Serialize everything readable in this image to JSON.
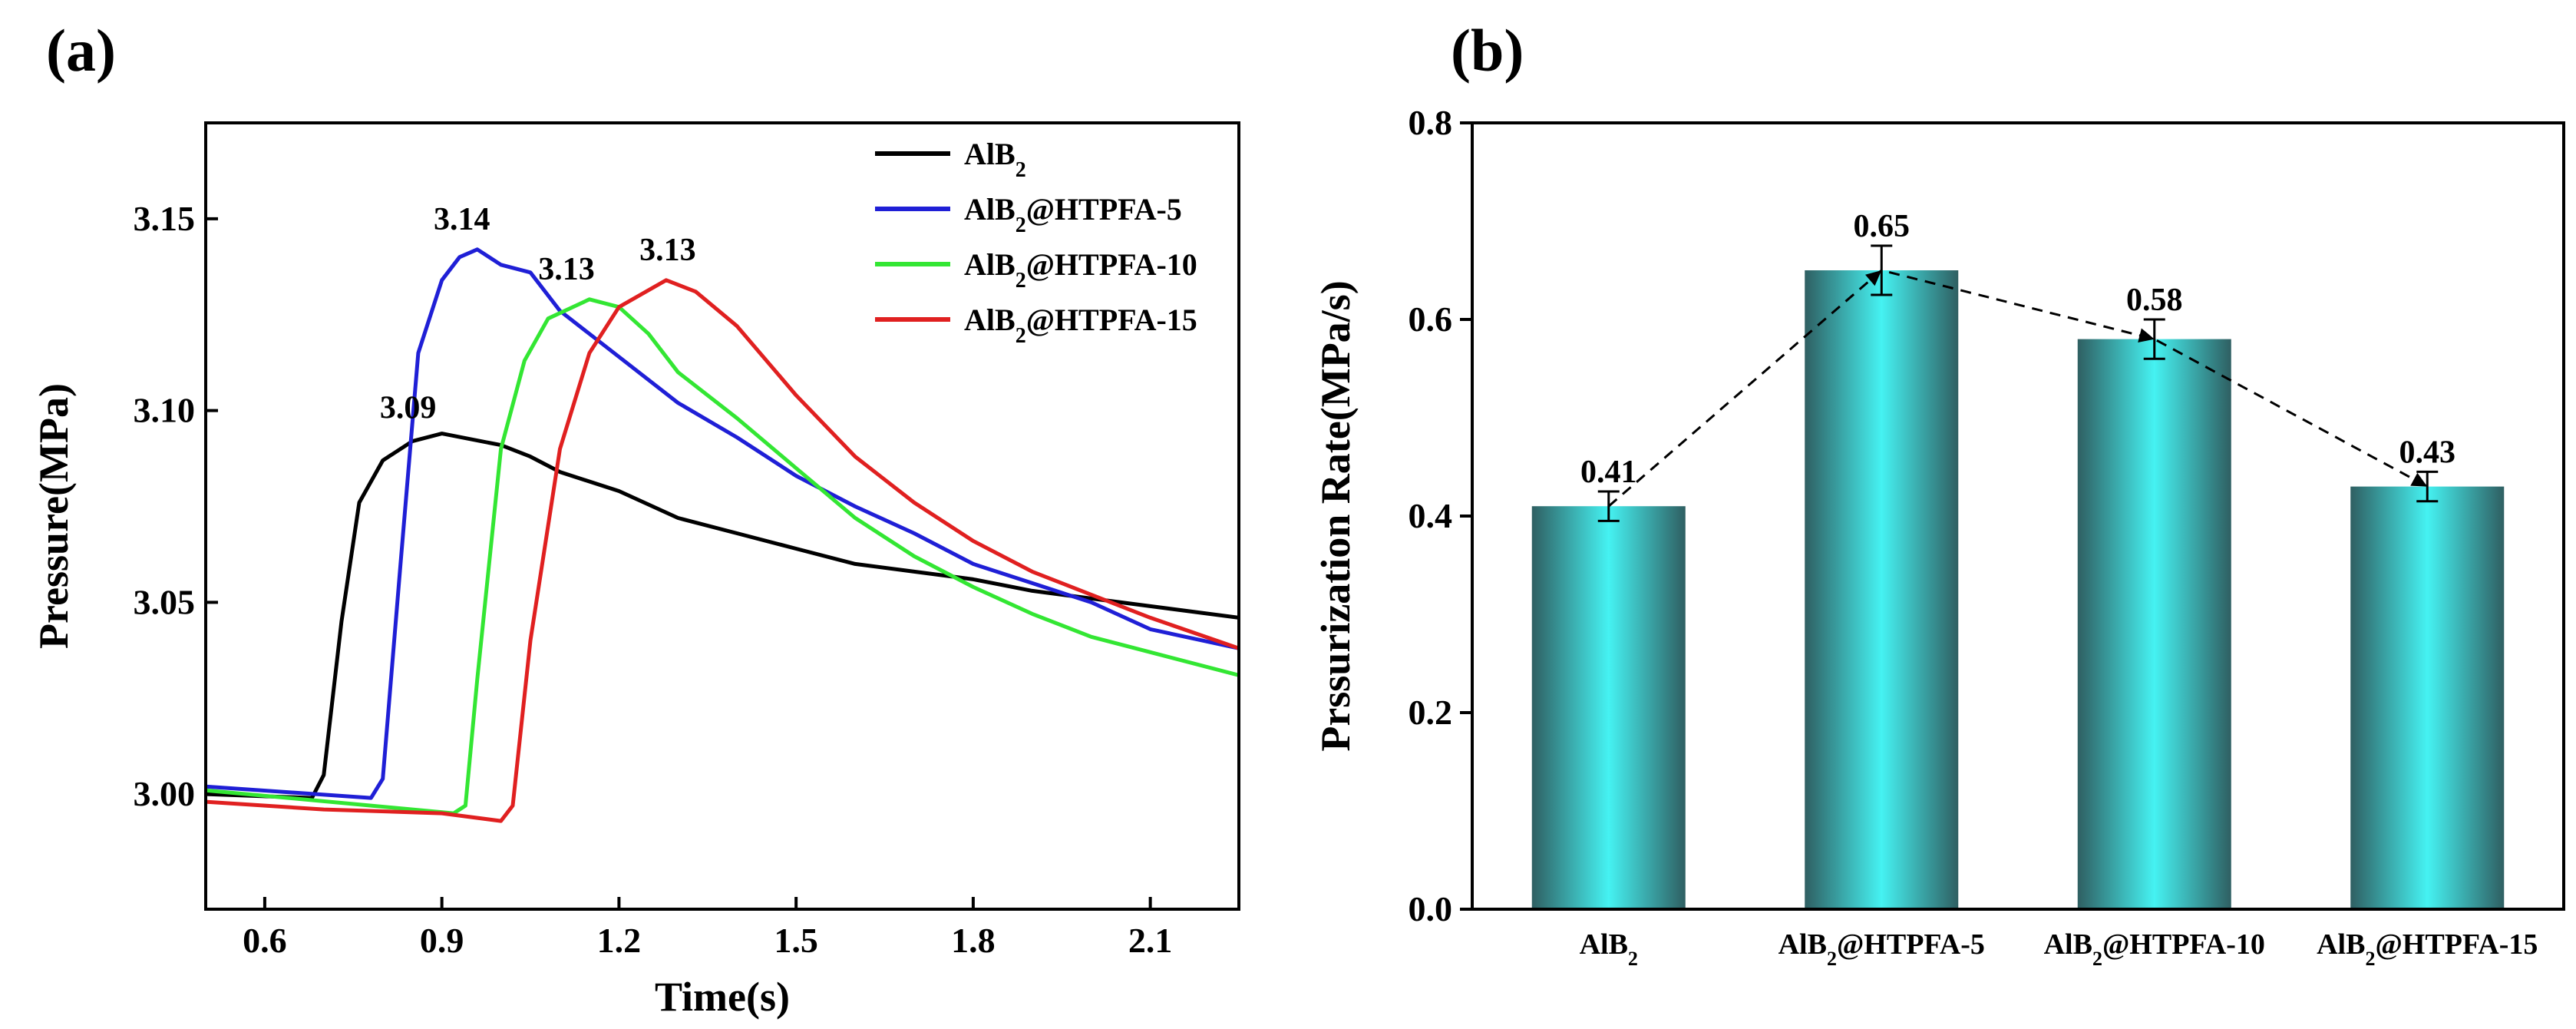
{
  "chart_data": [
    {
      "panel": "(a)",
      "type": "line",
      "xlabel": "Time(s)",
      "ylabel": "Pressure(MPa)",
      "xlim": [
        0.5,
        2.25
      ],
      "ylim": [
        2.97,
        3.175
      ],
      "xticks": [
        "0.6",
        "0.9",
        "1.2",
        "1.5",
        "1.8",
        "2.1"
      ],
      "yticks": [
        "3.00",
        "3.05",
        "3.10",
        "3.15"
      ],
      "legend_position": "top-right",
      "series": [
        {
          "name": "AlB",
          "sub": "2",
          "suffix": "",
          "color": "#000000",
          "peak_label": "3.09",
          "peak": [
            0.9,
            3.094
          ],
          "points": [
            [
              0.5,
              3.0
            ],
            [
              0.68,
              2.999
            ],
            [
              0.7,
              3.005
            ],
            [
              0.73,
              3.045
            ],
            [
              0.76,
              3.076
            ],
            [
              0.8,
              3.087
            ],
            [
              0.85,
              3.092
            ],
            [
              0.9,
              3.094
            ],
            [
              1.0,
              3.091
            ],
            [
              1.05,
              3.088
            ],
            [
              1.1,
              3.084
            ],
            [
              1.2,
              3.079
            ],
            [
              1.3,
              3.072
            ],
            [
              1.4,
              3.068
            ],
            [
              1.5,
              3.064
            ],
            [
              1.6,
              3.06
            ],
            [
              1.7,
              3.058
            ],
            [
              1.8,
              3.056
            ],
            [
              1.9,
              3.053
            ],
            [
              2.0,
              3.051
            ],
            [
              2.1,
              3.049
            ],
            [
              2.25,
              3.046
            ]
          ]
        },
        {
          "name": "AlB",
          "sub": "2",
          "suffix": "@HTPFA-5",
          "color": "#1f1fd6",
          "peak_label": "3.14",
          "peak": [
            0.96,
            3.142
          ],
          "points": [
            [
              0.5,
              3.002
            ],
            [
              0.78,
              2.999
            ],
            [
              0.8,
              3.004
            ],
            [
              0.83,
              3.06
            ],
            [
              0.86,
              3.115
            ],
            [
              0.9,
              3.134
            ],
            [
              0.93,
              3.14
            ],
            [
              0.96,
              3.142
            ],
            [
              1.0,
              3.138
            ],
            [
              1.05,
              3.136
            ],
            [
              1.1,
              3.126
            ],
            [
              1.2,
              3.114
            ],
            [
              1.3,
              3.102
            ],
            [
              1.4,
              3.093
            ],
            [
              1.5,
              3.083
            ],
            [
              1.6,
              3.075
            ],
            [
              1.7,
              3.068
            ],
            [
              1.8,
              3.06
            ],
            [
              1.9,
              3.055
            ],
            [
              2.0,
              3.05
            ],
            [
              2.1,
              3.043
            ],
            [
              2.25,
              3.038
            ]
          ]
        },
        {
          "name": "AlB",
          "sub": "2",
          "suffix": "@HTPFA-10",
          "color": "#33e633",
          "peak_label": "3.13",
          "peak": [
            1.15,
            3.129
          ],
          "points": [
            [
              0.5,
              3.001
            ],
            [
              0.92,
              2.995
            ],
            [
              0.94,
              2.997
            ],
            [
              0.96,
              3.03
            ],
            [
              1.0,
              3.09
            ],
            [
              1.04,
              3.113
            ],
            [
              1.08,
              3.124
            ],
            [
              1.15,
              3.129
            ],
            [
              1.2,
              3.127
            ],
            [
              1.25,
              3.12
            ],
            [
              1.3,
              3.11
            ],
            [
              1.4,
              3.098
            ],
            [
              1.5,
              3.085
            ],
            [
              1.6,
              3.072
            ],
            [
              1.7,
              3.062
            ],
            [
              1.8,
              3.054
            ],
            [
              1.9,
              3.047
            ],
            [
              2.0,
              3.041
            ],
            [
              2.1,
              3.037
            ],
            [
              2.25,
              3.031
            ]
          ]
        },
        {
          "name": "AlB",
          "sub": "2",
          "suffix": "@HTPFA-15",
          "color": "#e02020",
          "peak_label": "3.13",
          "peak": [
            1.28,
            3.134
          ],
          "points": [
            [
              0.5,
              2.998
            ],
            [
              0.7,
              2.996
            ],
            [
              0.9,
              2.995
            ],
            [
              1.0,
              2.993
            ],
            [
              1.02,
              2.997
            ],
            [
              1.05,
              3.04
            ],
            [
              1.1,
              3.09
            ],
            [
              1.15,
              3.115
            ],
            [
              1.2,
              3.127
            ],
            [
              1.28,
              3.134
            ],
            [
              1.33,
              3.131
            ],
            [
              1.4,
              3.122
            ],
            [
              1.5,
              3.104
            ],
            [
              1.6,
              3.088
            ],
            [
              1.7,
              3.076
            ],
            [
              1.8,
              3.066
            ],
            [
              1.9,
              3.058
            ],
            [
              2.0,
              3.052
            ],
            [
              2.1,
              3.046
            ],
            [
              2.25,
              3.038
            ]
          ]
        }
      ]
    },
    {
      "panel": "(b)",
      "type": "bar",
      "ylabel": "Prssurization Rate(MPa/s)",
      "ylim": [
        0.0,
        0.8
      ],
      "yticks": [
        "0.0",
        "0.2",
        "0.4",
        "0.6",
        "0.8"
      ],
      "categories": [
        {
          "name": "AlB",
          "sub": "2",
          "suffix": ""
        },
        {
          "name": "AlB",
          "sub": "2",
          "suffix": "@HTPFA-5"
        },
        {
          "name": "AlB",
          "sub": "2",
          "suffix": "@HTPFA-10"
        },
        {
          "name": "AlB",
          "sub": "2",
          "suffix": "@HTPFA-15"
        }
      ],
      "values": [
        0.41,
        0.65,
        0.58,
        0.43
      ],
      "value_labels": [
        "0.41",
        "0.65",
        "0.58",
        "0.43"
      ],
      "errors": [
        0.015,
        0.025,
        0.02,
        0.015
      ],
      "trend_line": "dashed",
      "bar_color": "#3de8e8"
    }
  ]
}
